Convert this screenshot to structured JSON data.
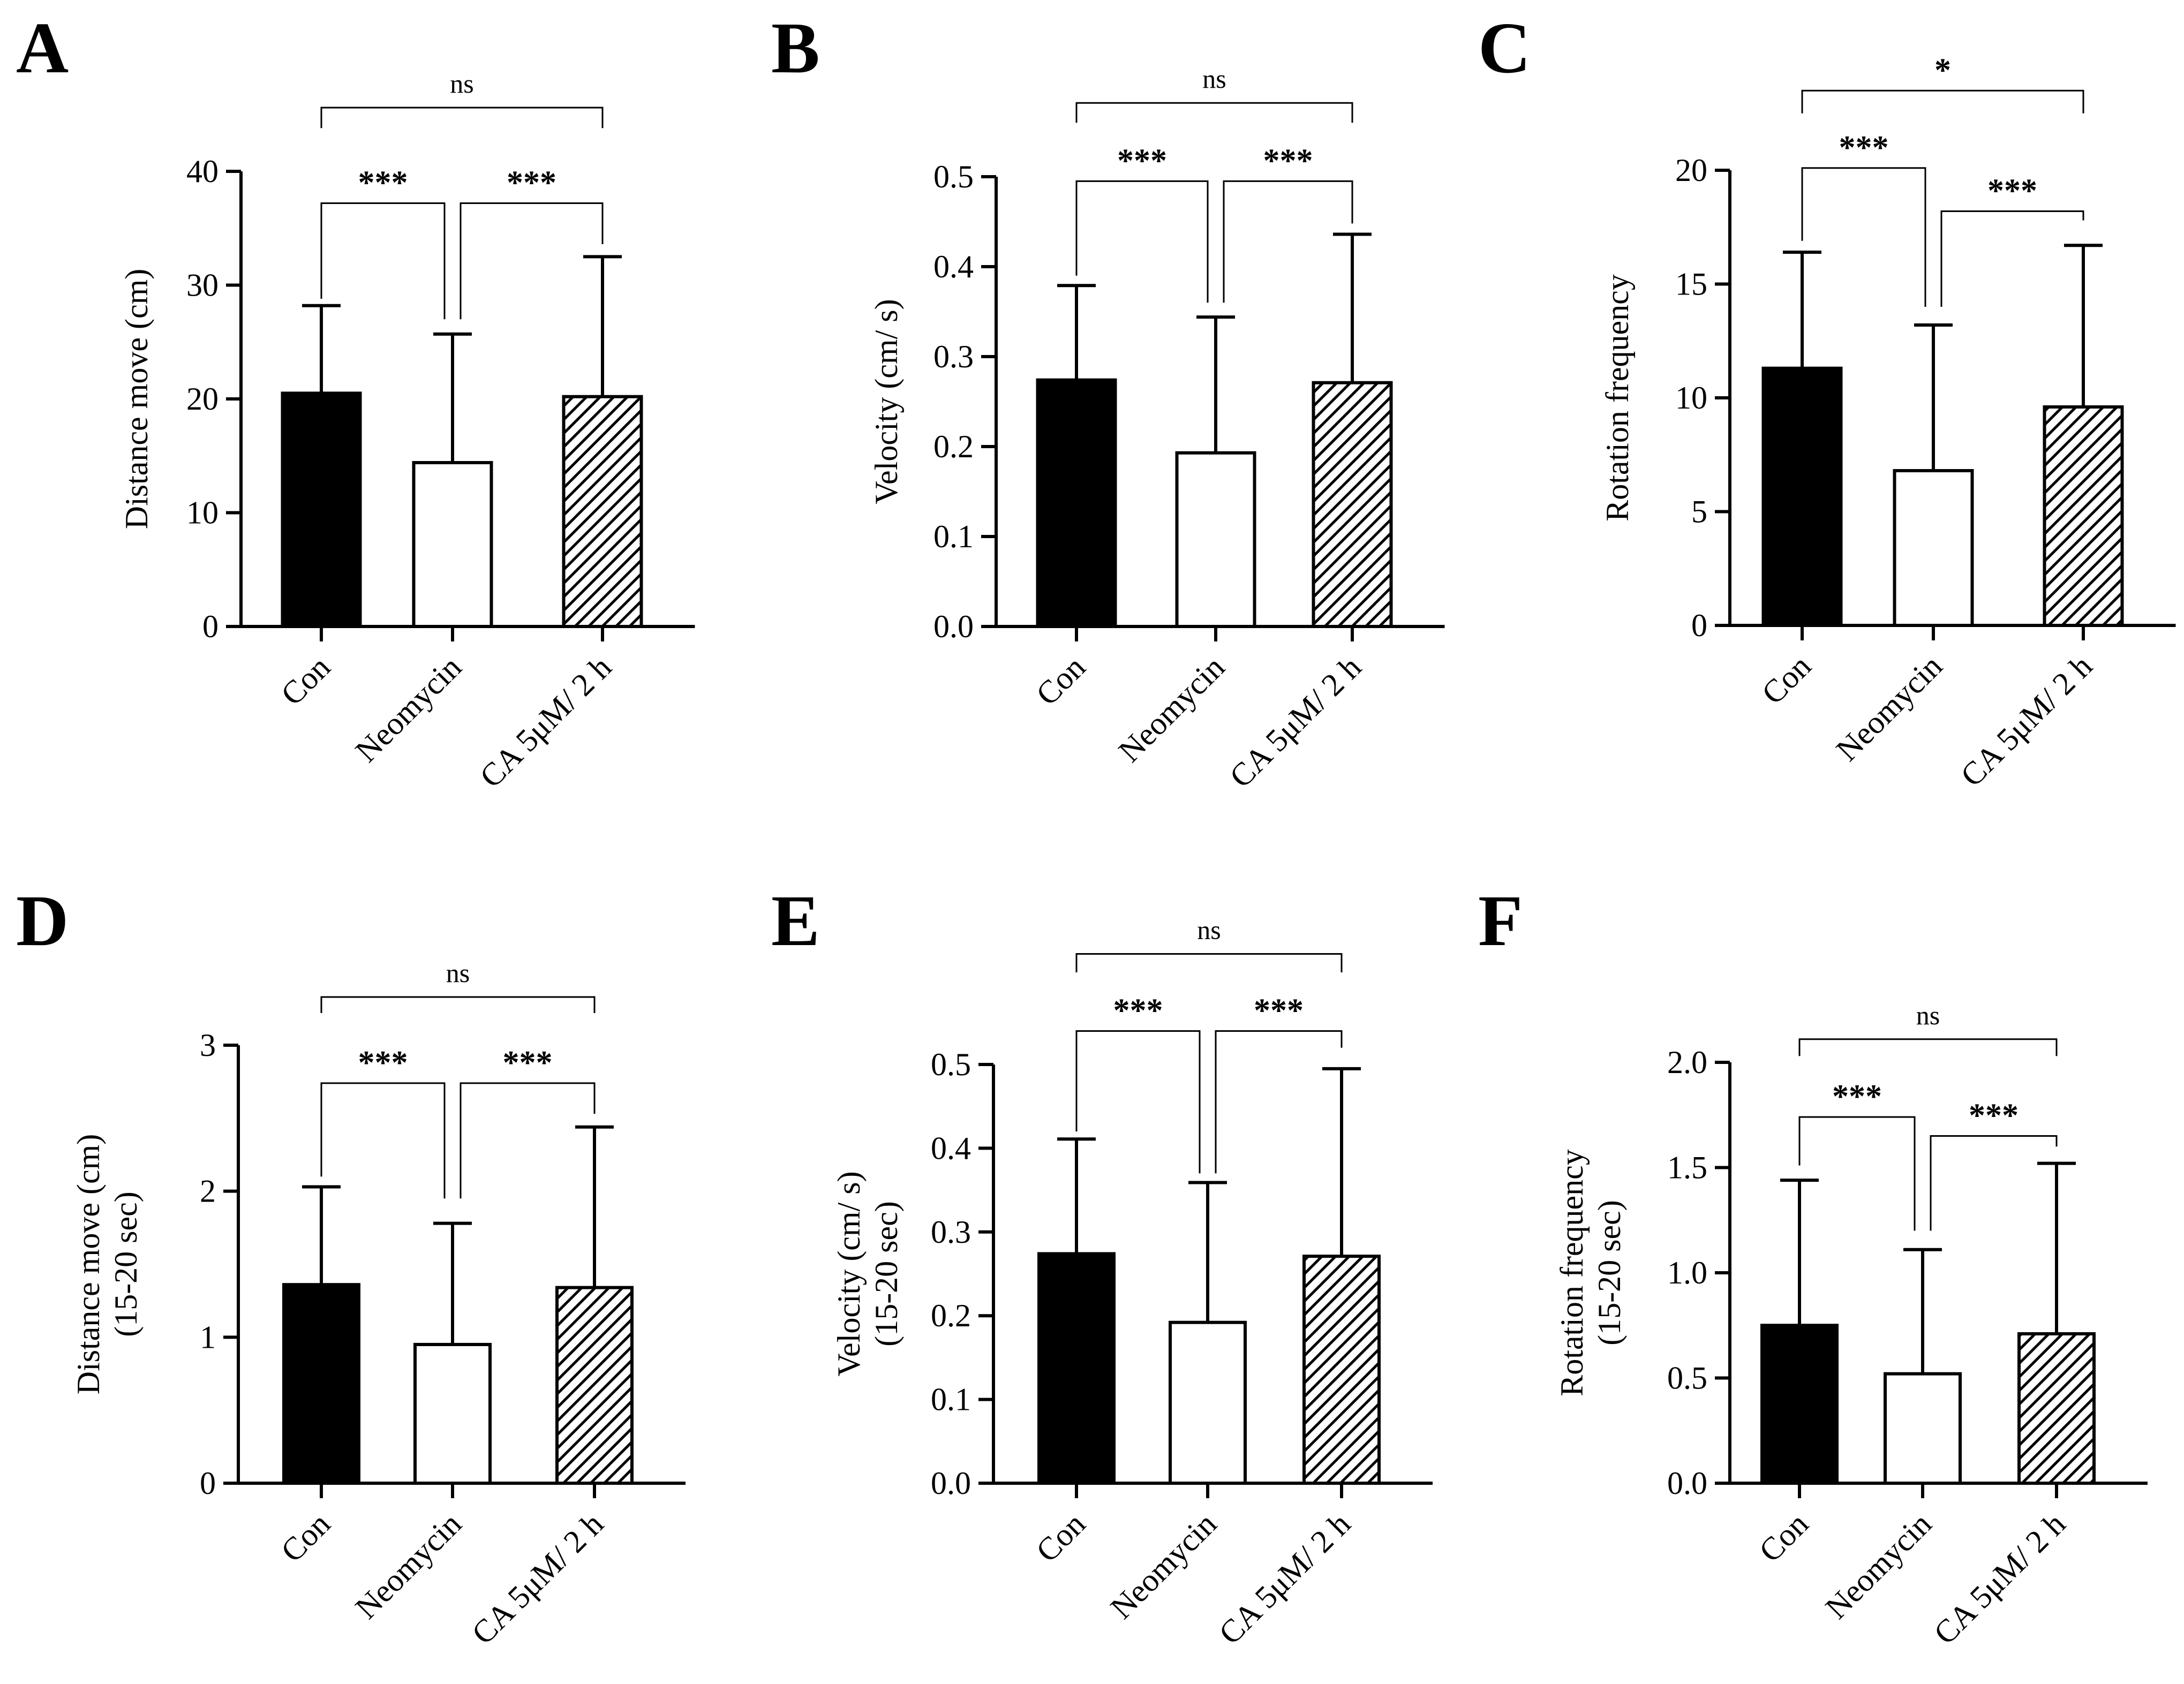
{
  "figure": {
    "colors": {
      "ink": "#000000",
      "background": "#ffffff",
      "open_bar": "#ffffff"
    }
  },
  "chart_data": [
    {
      "panel": "A",
      "type": "bar",
      "categories": [
        "Con",
        "Neomycin",
        "CA 5μM/ 2 h"
      ],
      "bar_styles": [
        "solid",
        "open",
        "hatched"
      ],
      "values": [
        20.5,
        14.4,
        20.2
      ],
      "error_upper": [
        28.2,
        25.7,
        32.5
      ],
      "ylabel": [
        "Distance move (cm)"
      ],
      "ylim": [
        0,
        40
      ],
      "yticks": [
        0,
        10,
        20,
        30,
        40
      ],
      "tick_decimals": 0,
      "significance": [
        {
          "from": 0,
          "to": 1,
          "label": "***",
          "y": 37.2,
          "dl": 28.8,
          "dr": 27.0
        },
        {
          "from": 1,
          "to": 2,
          "label": "***",
          "y": 37.2,
          "dl": 27.0,
          "dr": 33.6
        },
        {
          "from": 0,
          "to": 2,
          "label": "ns",
          "y": 45.6,
          "dl": 43.8,
          "dr": 43.8
        }
      ]
    },
    {
      "panel": "B",
      "type": "bar",
      "categories": [
        "Con",
        "Neomycin",
        "CA 5μM/ 2 h"
      ],
      "bar_styles": [
        "solid",
        "open",
        "hatched"
      ],
      "values": [
        0.274,
        0.193,
        0.271
      ],
      "error_upper": [
        0.379,
        0.344,
        0.436
      ],
      "ylabel": [
        "Velocity (cm/ s)"
      ],
      "ylim": [
        0,
        0.5
      ],
      "yticks": [
        0.0,
        0.1,
        0.2,
        0.3,
        0.4,
        0.5
      ],
      "tick_decimals": 1,
      "significance": [
        {
          "from": 0,
          "to": 1,
          "label": "***",
          "y": 0.495,
          "dl": 0.39,
          "dr": 0.36
        },
        {
          "from": 1,
          "to": 2,
          "label": "***",
          "y": 0.495,
          "dl": 0.36,
          "dr": 0.448
        },
        {
          "from": 0,
          "to": 2,
          "label": "ns",
          "y": 0.582,
          "dl": 0.56,
          "dr": 0.56
        }
      ]
    },
    {
      "panel": "C",
      "type": "bar",
      "categories": [
        "Con",
        "Neomycin",
        "CA 5μM/ 2 h"
      ],
      "bar_styles": [
        "solid",
        "open",
        "hatched"
      ],
      "values": [
        11.3,
        6.8,
        9.6
      ],
      "error_upper": [
        16.4,
        13.2,
        16.7
      ],
      "ylabel": [
        "Rotation frequency"
      ],
      "ylim": [
        0,
        20
      ],
      "yticks": [
        0,
        5,
        10,
        15,
        20
      ],
      "tick_decimals": 0,
      "significance": [
        {
          "from": 0,
          "to": 1,
          "label": "***",
          "y": 20.1,
          "dl": 16.9,
          "dr": 14.0
        },
        {
          "from": 1,
          "to": 2,
          "label": "***",
          "y": 18.2,
          "dl": 14.0,
          "dr": 17.8
        },
        {
          "from": 0,
          "to": 2,
          "label": "*",
          "y": 23.5,
          "dl": 22.5,
          "dr": 22.5
        }
      ]
    },
    {
      "panel": "D",
      "type": "bar",
      "categories": [
        "Con",
        "Neomycin",
        "CA 5μM/ 2 h"
      ],
      "bar_styles": [
        "solid",
        "open",
        "hatched"
      ],
      "values": [
        1.36,
        0.95,
        1.34
      ],
      "error_upper": [
        2.03,
        1.78,
        2.44
      ],
      "ylabel": [
        "Distance move (cm)",
        "(15-20 sec)"
      ],
      "ylim": [
        0,
        3
      ],
      "yticks": [
        0,
        1,
        2,
        3
      ],
      "tick_decimals": 0,
      "significance": [
        {
          "from": 0,
          "to": 1,
          "label": "***",
          "y": 2.74,
          "dl": 2.1,
          "dr": 1.95
        },
        {
          "from": 1,
          "to": 2,
          "label": "***",
          "y": 2.74,
          "dl": 1.95,
          "dr": 2.53
        },
        {
          "from": 0,
          "to": 2,
          "label": "ns",
          "y": 3.33,
          "dl": 3.22,
          "dr": 3.22
        }
      ]
    },
    {
      "panel": "E",
      "type": "bar",
      "categories": [
        "Con",
        "Neomycin",
        "CA 5μM/ 2 h"
      ],
      "bar_styles": [
        "solid",
        "open",
        "hatched"
      ],
      "values": [
        0.274,
        0.192,
        0.271
      ],
      "error_upper": [
        0.411,
        0.359,
        0.495
      ],
      "ylabel": [
        "Velocity (cm/ s)",
        "(15-20 sec)"
      ],
      "ylim": [
        0,
        0.5
      ],
      "yticks": [
        0.0,
        0.1,
        0.2,
        0.3,
        0.4,
        0.5
      ],
      "tick_decimals": 1,
      "significance": [
        {
          "from": 0,
          "to": 1,
          "label": "***",
          "y": 0.54,
          "dl": 0.42,
          "dr": 0.37
        },
        {
          "from": 1,
          "to": 2,
          "label": "***",
          "y": 0.54,
          "dl": 0.37,
          "dr": 0.52
        },
        {
          "from": 0,
          "to": 2,
          "label": "ns",
          "y": 0.632,
          "dl": 0.61,
          "dr": 0.61
        }
      ]
    },
    {
      "panel": "F",
      "type": "bar",
      "categories": [
        "Con",
        "Neomycin",
        "CA 5μM/ 2 h"
      ],
      "bar_styles": [
        "solid",
        "open",
        "hatched"
      ],
      "values": [
        0.75,
        0.52,
        0.71
      ],
      "error_upper": [
        1.44,
        1.11,
        1.52
      ],
      "ylabel": [
        "Rotation frequency",
        "(15-20 sec)"
      ],
      "ylim": [
        0,
        2.0
      ],
      "yticks": [
        0.0,
        0.5,
        1.0,
        1.5,
        2.0
      ],
      "tick_decimals": 1,
      "significance": [
        {
          "from": 0,
          "to": 1,
          "label": "***",
          "y": 1.74,
          "dl": 1.51,
          "dr": 1.2
        },
        {
          "from": 1,
          "to": 2,
          "label": "***",
          "y": 1.65,
          "dl": 1.2,
          "dr": 1.6
        },
        {
          "from": 0,
          "to": 2,
          "label": "ns",
          "y": 2.11,
          "dl": 2.03,
          "dr": 2.03
        }
      ]
    }
  ]
}
